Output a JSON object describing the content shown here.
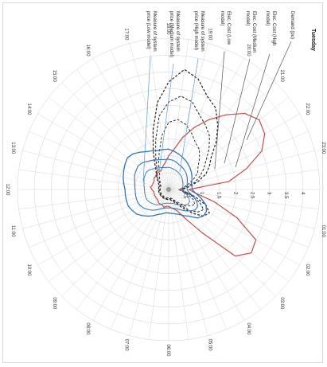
{
  "chart_data": {
    "type": "radar",
    "title": "Tuesday",
    "rotation_deg": 90,
    "radial_ticks": [
      "0.5",
      "1",
      "1.5",
      "2",
      "2.5",
      "3",
      "3.5",
      "4"
    ],
    "rmax": 4.5,
    "hour_labels": [
      "00:00",
      "01:00",
      "02:00",
      "03:00",
      "04:00",
      "05:00",
      "06:00",
      "07:00",
      "08:00",
      "09:00",
      "10:00",
      "11:00",
      "12:00",
      "13:00",
      "14:00",
      "15:00",
      "16:00",
      "17:00",
      "18:00",
      "19:00",
      "20:00",
      "21:00",
      "22:00",
      "23:00"
    ],
    "points_per_hour": 2,
    "series": [
      {
        "name": "Demand (pu)",
        "color": "#c0504d",
        "dash": "",
        "width": 1.2,
        "values": [
          0.6,
          0.8,
          1.4,
          2.2,
          3.0,
          3.1,
          2.8,
          1.6,
          1.0,
          0.7,
          0.6,
          0.55,
          0.5,
          0.5,
          0.55,
          0.5,
          0.5,
          0.5,
          0.45,
          0.45,
          0.45,
          0.45,
          0.45,
          0.45,
          0.5,
          0.55,
          0.5,
          0.5,
          0.5,
          0.55,
          0.55,
          0.6,
          0.6,
          0.6,
          0.7,
          0.8,
          1.0,
          1.2,
          1.6,
          2.0,
          2.4,
          2.8,
          3.2,
          3.4,
          3.3,
          3.0,
          2.4,
          1.8
        ]
      },
      {
        "name": "Elec. Cost (High model)",
        "color": "#222222",
        "dash": "3,2",
        "width": 1.2,
        "values": [
          0.4,
          0.5,
          0.8,
          1.2,
          1.4,
          1.3,
          1.0,
          0.7,
          0.5,
          0.4,
          0.35,
          0.3,
          0.3,
          0.3,
          0.3,
          0.3,
          0.3,
          0.3,
          0.3,
          0.3,
          0.3,
          0.3,
          0.3,
          0.3,
          0.3,
          0.3,
          0.3,
          0.3,
          0.35,
          0.4,
          0.5,
          0.6,
          0.8,
          1.2,
          1.8,
          2.6,
          3.2,
          3.6,
          3.4,
          3.0,
          2.8,
          2.4,
          2.0,
          1.6,
          1.4,
          1.2,
          0.9,
          0.6
        ]
      },
      {
        "name": "Elec. Cost (Medium model)",
        "color": "#222222",
        "dash": "3,2",
        "width": 1.0,
        "values": [
          0.35,
          0.45,
          0.7,
          1.0,
          1.2,
          1.1,
          0.9,
          0.6,
          0.45,
          0.35,
          0.3,
          0.28,
          0.28,
          0.28,
          0.28,
          0.28,
          0.28,
          0.28,
          0.28,
          0.28,
          0.28,
          0.28,
          0.28,
          0.28,
          0.28,
          0.28,
          0.28,
          0.28,
          0.3,
          0.35,
          0.45,
          0.55,
          0.7,
          1.0,
          1.5,
          2.2,
          2.6,
          2.8,
          2.7,
          2.4,
          2.2,
          2.0,
          1.7,
          1.4,
          1.2,
          1.0,
          0.8,
          0.5
        ]
      },
      {
        "name": "Elec. Cost (Low model)",
        "color": "#222222",
        "dash": "3,2",
        "width": 0.9,
        "values": [
          0.3,
          0.4,
          0.6,
          0.8,
          0.9,
          0.8,
          0.7,
          0.5,
          0.4,
          0.3,
          0.27,
          0.25,
          0.25,
          0.25,
          0.25,
          0.25,
          0.25,
          0.25,
          0.25,
          0.25,
          0.25,
          0.25,
          0.25,
          0.25,
          0.25,
          0.25,
          0.25,
          0.25,
          0.28,
          0.3,
          0.38,
          0.45,
          0.55,
          0.8,
          1.1,
          1.6,
          2.0,
          2.1,
          2.0,
          1.8,
          1.6,
          1.5,
          1.3,
          1.1,
          1.0,
          0.8,
          0.6,
          0.45
        ]
      },
      {
        "name": "Measure of system price (High model)",
        "color": "#2e75b6",
        "dash": "",
        "width": 1.3,
        "values": [
          0.7,
          0.8,
          1.0,
          1.2,
          1.3,
          1.3,
          1.2,
          1.0,
          0.9,
          0.8,
          0.75,
          0.72,
          0.7,
          0.7,
          0.75,
          0.8,
          0.9,
          1.0,
          1.1,
          1.2,
          1.25,
          1.3,
          1.3,
          1.3,
          1.3,
          1.35,
          1.4,
          1.45,
          1.5,
          1.55,
          1.5,
          1.4,
          1.3,
          1.25,
          1.2,
          1.2,
          1.2,
          1.15,
          1.1,
          1.05,
          1.0,
          0.95,
          0.9,
          0.85,
          0.8,
          0.75,
          0.7,
          0.7
        ]
      },
      {
        "name": "Measure of system price (Medium model)",
        "color": "#2e75b6",
        "dash": "",
        "width": 1.1,
        "values": [
          0.55,
          0.6,
          0.75,
          0.9,
          1.0,
          1.0,
          0.9,
          0.8,
          0.7,
          0.62,
          0.58,
          0.55,
          0.55,
          0.55,
          0.58,
          0.62,
          0.7,
          0.78,
          0.85,
          0.92,
          0.97,
          1.0,
          1.0,
          1.0,
          1.0,
          1.02,
          1.05,
          1.1,
          1.12,
          1.15,
          1.12,
          1.05,
          1.0,
          0.95,
          0.92,
          0.9,
          0.9,
          0.88,
          0.85,
          0.8,
          0.78,
          0.75,
          0.72,
          0.68,
          0.64,
          0.6,
          0.57,
          0.55
        ]
      },
      {
        "name": "Measure of system price (Low model)",
        "color": "#2e75b6",
        "dash": "",
        "width": 0.9,
        "values": [
          0.42,
          0.45,
          0.55,
          0.65,
          0.72,
          0.72,
          0.66,
          0.58,
          0.52,
          0.46,
          0.43,
          0.41,
          0.41,
          0.41,
          0.43,
          0.46,
          0.52,
          0.58,
          0.62,
          0.66,
          0.7,
          0.72,
          0.72,
          0.72,
          0.72,
          0.74,
          0.76,
          0.8,
          0.82,
          0.84,
          0.82,
          0.77,
          0.73,
          0.7,
          0.68,
          0.66,
          0.66,
          0.64,
          0.62,
          0.6,
          0.58,
          0.56,
          0.54,
          0.51,
          0.48,
          0.46,
          0.44,
          0.42
        ]
      }
    ]
  }
}
